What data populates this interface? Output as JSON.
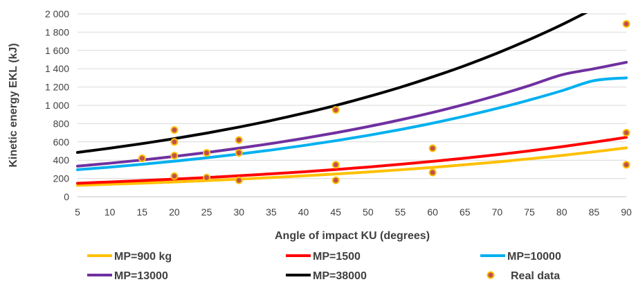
{
  "chart_data": {
    "type": "line",
    "xlabel": "Angle of impact KU (degrees)",
    "ylabel": "Kinetic energy EKL (kJ)",
    "xlim": [
      5,
      90
    ],
    "ylim": [
      0,
      2000
    ],
    "x_ticks": [
      5,
      10,
      15,
      20,
      25,
      30,
      35,
      40,
      45,
      50,
      55,
      60,
      65,
      70,
      75,
      80,
      85,
      90
    ],
    "y_ticks": [
      0,
      200,
      400,
      600,
      800,
      1000,
      1200,
      1400,
      1600,
      1800,
      2000
    ],
    "y_tick_labels": [
      "0",
      "200",
      "400",
      "600",
      "800",
      "1 000",
      "1 200",
      "1 400",
      "1 600",
      "1 800",
      "2 000"
    ],
    "grid": "horizontal",
    "legend_position": "bottom",
    "series": [
      {
        "name": "MP=900 kg",
        "color": "#FFC000",
        "x": [
          5,
          10,
          15,
          20,
          25,
          30,
          35,
          40,
          45,
          50,
          55,
          60,
          65,
          70,
          75,
          80,
          85,
          90
        ],
        "values": [
          125,
          137,
          149,
          162,
          177,
          193,
          210,
          229,
          249,
          271,
          295,
          321,
          350,
          381,
          415,
          452,
          492,
          535
        ]
      },
      {
        "name": "MP=1500",
        "color": "#FF0000",
        "x": [
          5,
          10,
          15,
          20,
          25,
          30,
          35,
          40,
          45,
          50,
          55,
          60,
          65,
          70,
          75,
          80,
          85,
          90
        ],
        "values": [
          148,
          162,
          177,
          193,
          210,
          230,
          251,
          273,
          298,
          325,
          355,
          387,
          422,
          460,
          502,
          547,
          597,
          650
        ]
      },
      {
        "name": "MP=10000",
        "color": "#00B0F0",
        "x": [
          5,
          10,
          15,
          20,
          25,
          30,
          35,
          40,
          45,
          50,
          55,
          60,
          65,
          70,
          75,
          80,
          85,
          90
        ],
        "values": [
          296,
          324,
          355,
          389,
          426,
          467,
          511,
          560,
          613,
          671,
          735,
          805,
          882,
          966,
          1058,
          1159,
          1270,
          1300
        ]
      },
      {
        "name": "MP=13000",
        "color": "#7030A0",
        "x": [
          5,
          10,
          15,
          20,
          25,
          30,
          35,
          40,
          45,
          50,
          55,
          60,
          65,
          70,
          75,
          80,
          85,
          90
        ],
        "values": [
          335,
          367,
          402,
          441,
          484,
          531,
          582,
          638,
          700,
          767,
          841,
          922,
          1011,
          1109,
          1216,
          1333,
          1400,
          1470
        ]
      },
      {
        "name": "MP=38000",
        "color": "#000000",
        "x": [
          5,
          10,
          15,
          20,
          25,
          30,
          35,
          40,
          45,
          50,
          55,
          60,
          65,
          70,
          75,
          80,
          85
        ],
        "values": [
          485,
          531,
          581,
          636,
          696,
          762,
          834,
          913,
          999,
          1094,
          1197,
          1311,
          1434,
          1570,
          1719,
          1881,
          2059
        ]
      }
    ],
    "scatter": {
      "name": "Real data",
      "fill": "#C0504D",
      "stroke": "#FFC000",
      "points": [
        [
          15,
          420
        ],
        [
          20,
          730
        ],
        [
          20,
          600
        ],
        [
          20,
          450
        ],
        [
          20,
          225
        ],
        [
          25,
          480
        ],
        [
          25,
          210
        ],
        [
          30,
          620
        ],
        [
          30,
          480
        ],
        [
          30,
          180
        ],
        [
          45,
          950
        ],
        [
          45,
          350
        ],
        [
          45,
          180
        ],
        [
          60,
          530
        ],
        [
          60,
          265
        ],
        [
          90,
          1890
        ],
        [
          90,
          700
        ],
        [
          90,
          350
        ]
      ]
    }
  }
}
